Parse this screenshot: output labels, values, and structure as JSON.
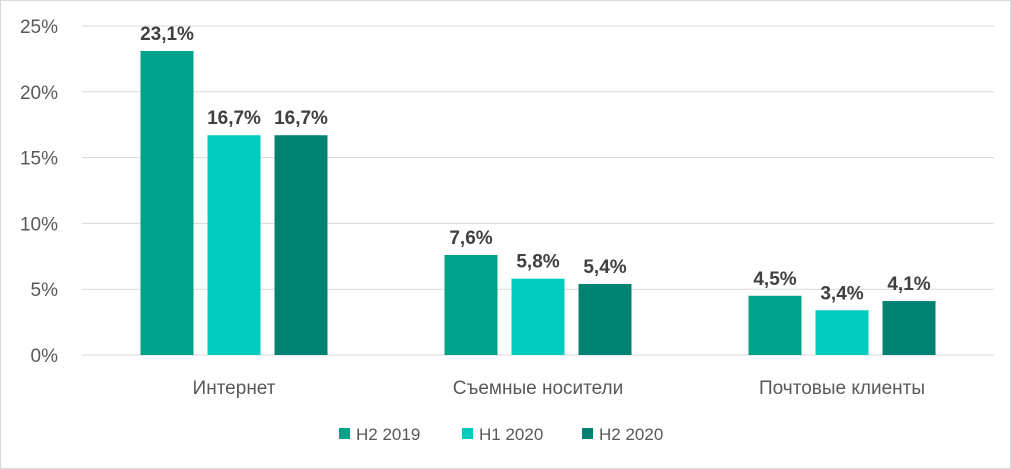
{
  "chart_data": {
    "type": "bar",
    "categories": [
      "Интернет",
      "Съемные носители",
      "Почтовые клиенты"
    ],
    "series": [
      {
        "name": "H2 2019",
        "values": [
          23.1,
          7.6,
          4.5
        ],
        "labels": [
          "23,1%",
          "7,6%",
          "4,5%"
        ],
        "color": "#00a28a"
      },
      {
        "name": "H1 2020",
        "values": [
          16.7,
          5.8,
          3.4
        ],
        "labels": [
          "16,7%",
          "5,8%",
          "3,4%"
        ],
        "color": "#00ccbe"
      },
      {
        "name": "H2 2020",
        "values": [
          16.7,
          5.4,
          4.1
        ],
        "labels": [
          "16,7%",
          "5,4%",
          "4,1%"
        ],
        "color": "#008272"
      }
    ],
    "ylim": [
      0,
      25
    ],
    "yticks": [
      {
        "value": 0,
        "label": "0%"
      },
      {
        "value": 5,
        "label": "5%"
      },
      {
        "value": 10,
        "label": "10%"
      },
      {
        "value": 15,
        "label": "15%"
      },
      {
        "value": 20,
        "label": "20%"
      },
      {
        "value": 25,
        "label": "25%"
      }
    ],
    "grid": true,
    "legend": "bottom"
  }
}
